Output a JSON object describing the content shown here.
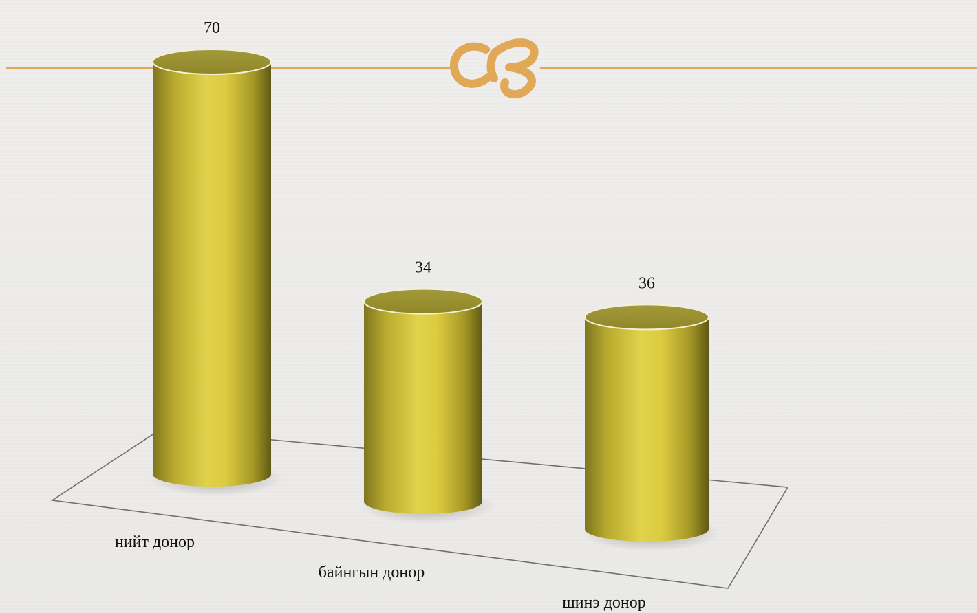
{
  "chart_data": {
    "type": "bar",
    "style": "3d-cylinder",
    "categories": [
      "нийт донор",
      "байнгын донор",
      "шинэ донор"
    ],
    "values": [
      70,
      34,
      36
    ],
    "data_labels": [
      "70",
      "34",
      "36"
    ],
    "bar_color": "#d9c93c",
    "grid": false,
    "legend": "none"
  },
  "decoration": {
    "line_color": "#e1a857",
    "icon": "flourish-ornament-icon"
  }
}
